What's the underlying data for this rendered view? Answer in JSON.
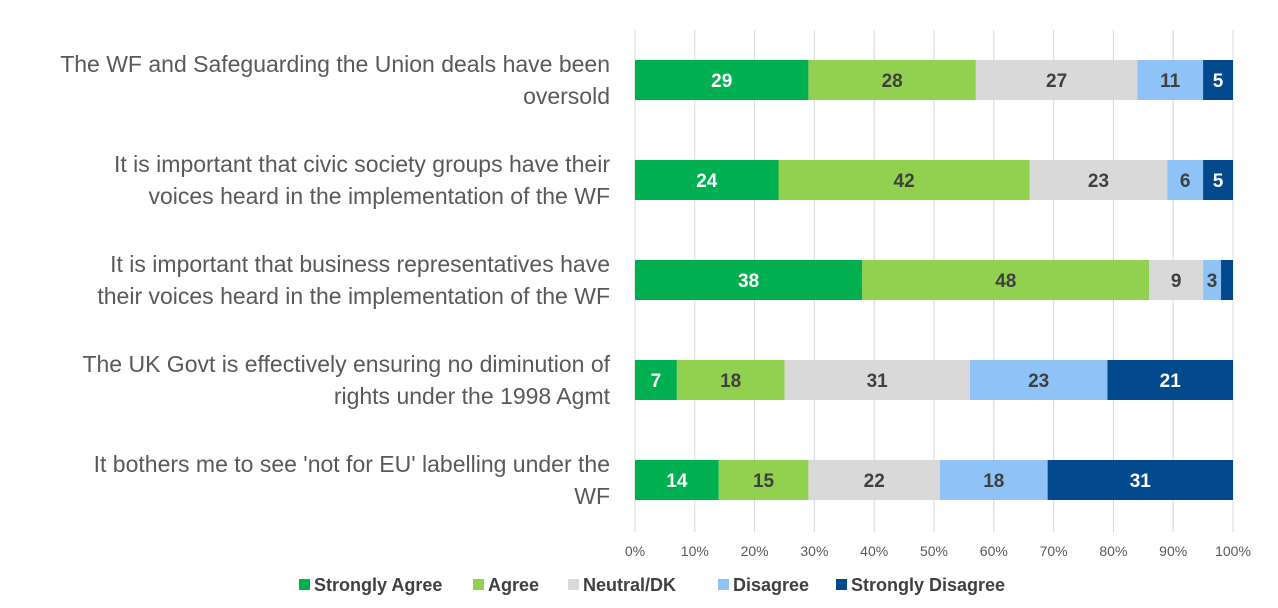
{
  "chart_data": {
    "type": "bar",
    "orientation": "horizontal",
    "stacked": true,
    "title": "",
    "xlabel": "",
    "ylabel": "",
    "xlim": [
      0,
      100
    ],
    "x_ticks": [
      "0%",
      "10%",
      "20%",
      "30%",
      "40%",
      "50%",
      "60%",
      "70%",
      "80%",
      "90%",
      "100%"
    ],
    "grid": true,
    "legend_position": "bottom",
    "categories": [
      [
        "The WF and Safeguarding the Union deals have been",
        "oversold"
      ],
      [
        "It is important that civic society groups have their",
        "voices heard in the implementation of the WF"
      ],
      [
        "It is important that business representatives have",
        "their voices heard in the implementation of the WF"
      ],
      [
        "The UK Govt is effectively ensuring no diminution of",
        "rights under the 1998 Agmt"
      ],
      [
        "It bothers me to see 'not for EU' labelling under the",
        "WF"
      ]
    ],
    "series": [
      {
        "name": "Strongly Agree",
        "color": "#00B050",
        "label_color": "#ffffff",
        "values": [
          29,
          24,
          38,
          7,
          14
        ]
      },
      {
        "name": "Agree",
        "color": "#92D050",
        "label_color": "#404040",
        "values": [
          28,
          42,
          48,
          18,
          15
        ]
      },
      {
        "name": "Neutral/DK",
        "color": "#D9D9D9",
        "label_color": "#404040",
        "values": [
          27,
          23,
          9,
          31,
          22
        ]
      },
      {
        "name": "Disagree",
        "color": "#8FC3F7",
        "label_color": "#404040",
        "values": [
          11,
          6,
          3,
          23,
          18
        ]
      },
      {
        "name": "Strongly Disagree",
        "color": "#024A8D",
        "label_color": "#ffffff",
        "values": [
          5,
          5,
          2,
          21,
          31
        ]
      }
    ],
    "data_labels": [
      [
        "29",
        "24",
        "38",
        "7",
        "14"
      ],
      [
        "28",
        "42",
        "48",
        "18",
        "15"
      ],
      [
        "27",
        "23",
        "9",
        "31",
        "22"
      ],
      [
        "11",
        "6",
        "3",
        "23",
        "18"
      ],
      [
        "5",
        "5",
        "",
        "21",
        "31"
      ]
    ]
  }
}
